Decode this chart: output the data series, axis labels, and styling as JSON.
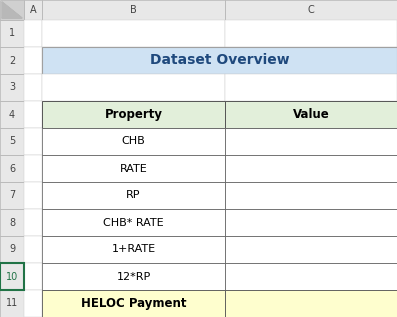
{
  "title": "Dataset Overview",
  "title_bg": "#cfe2f3",
  "col_header_bg": "#e2efda",
  "col_headers": [
    "Property",
    "Value"
  ],
  "rows": [
    "CHB",
    "RATE",
    "RP",
    "CHB* RATE",
    "1+RATE",
    "12*RP",
    "HELOC Payment"
  ],
  "last_row_bg": "#fefece",
  "outer_bg": "#ffffff",
  "triangle_bg": "#d0d0d0",
  "row_num_bg": "#e8e8e8",
  "col_letter_bg": "#e8e8e8",
  "row_num_text": "#444444",
  "col_letter_text": "#444444",
  "title_text_color": "#1f497d",
  "green_border": "#217346"
}
